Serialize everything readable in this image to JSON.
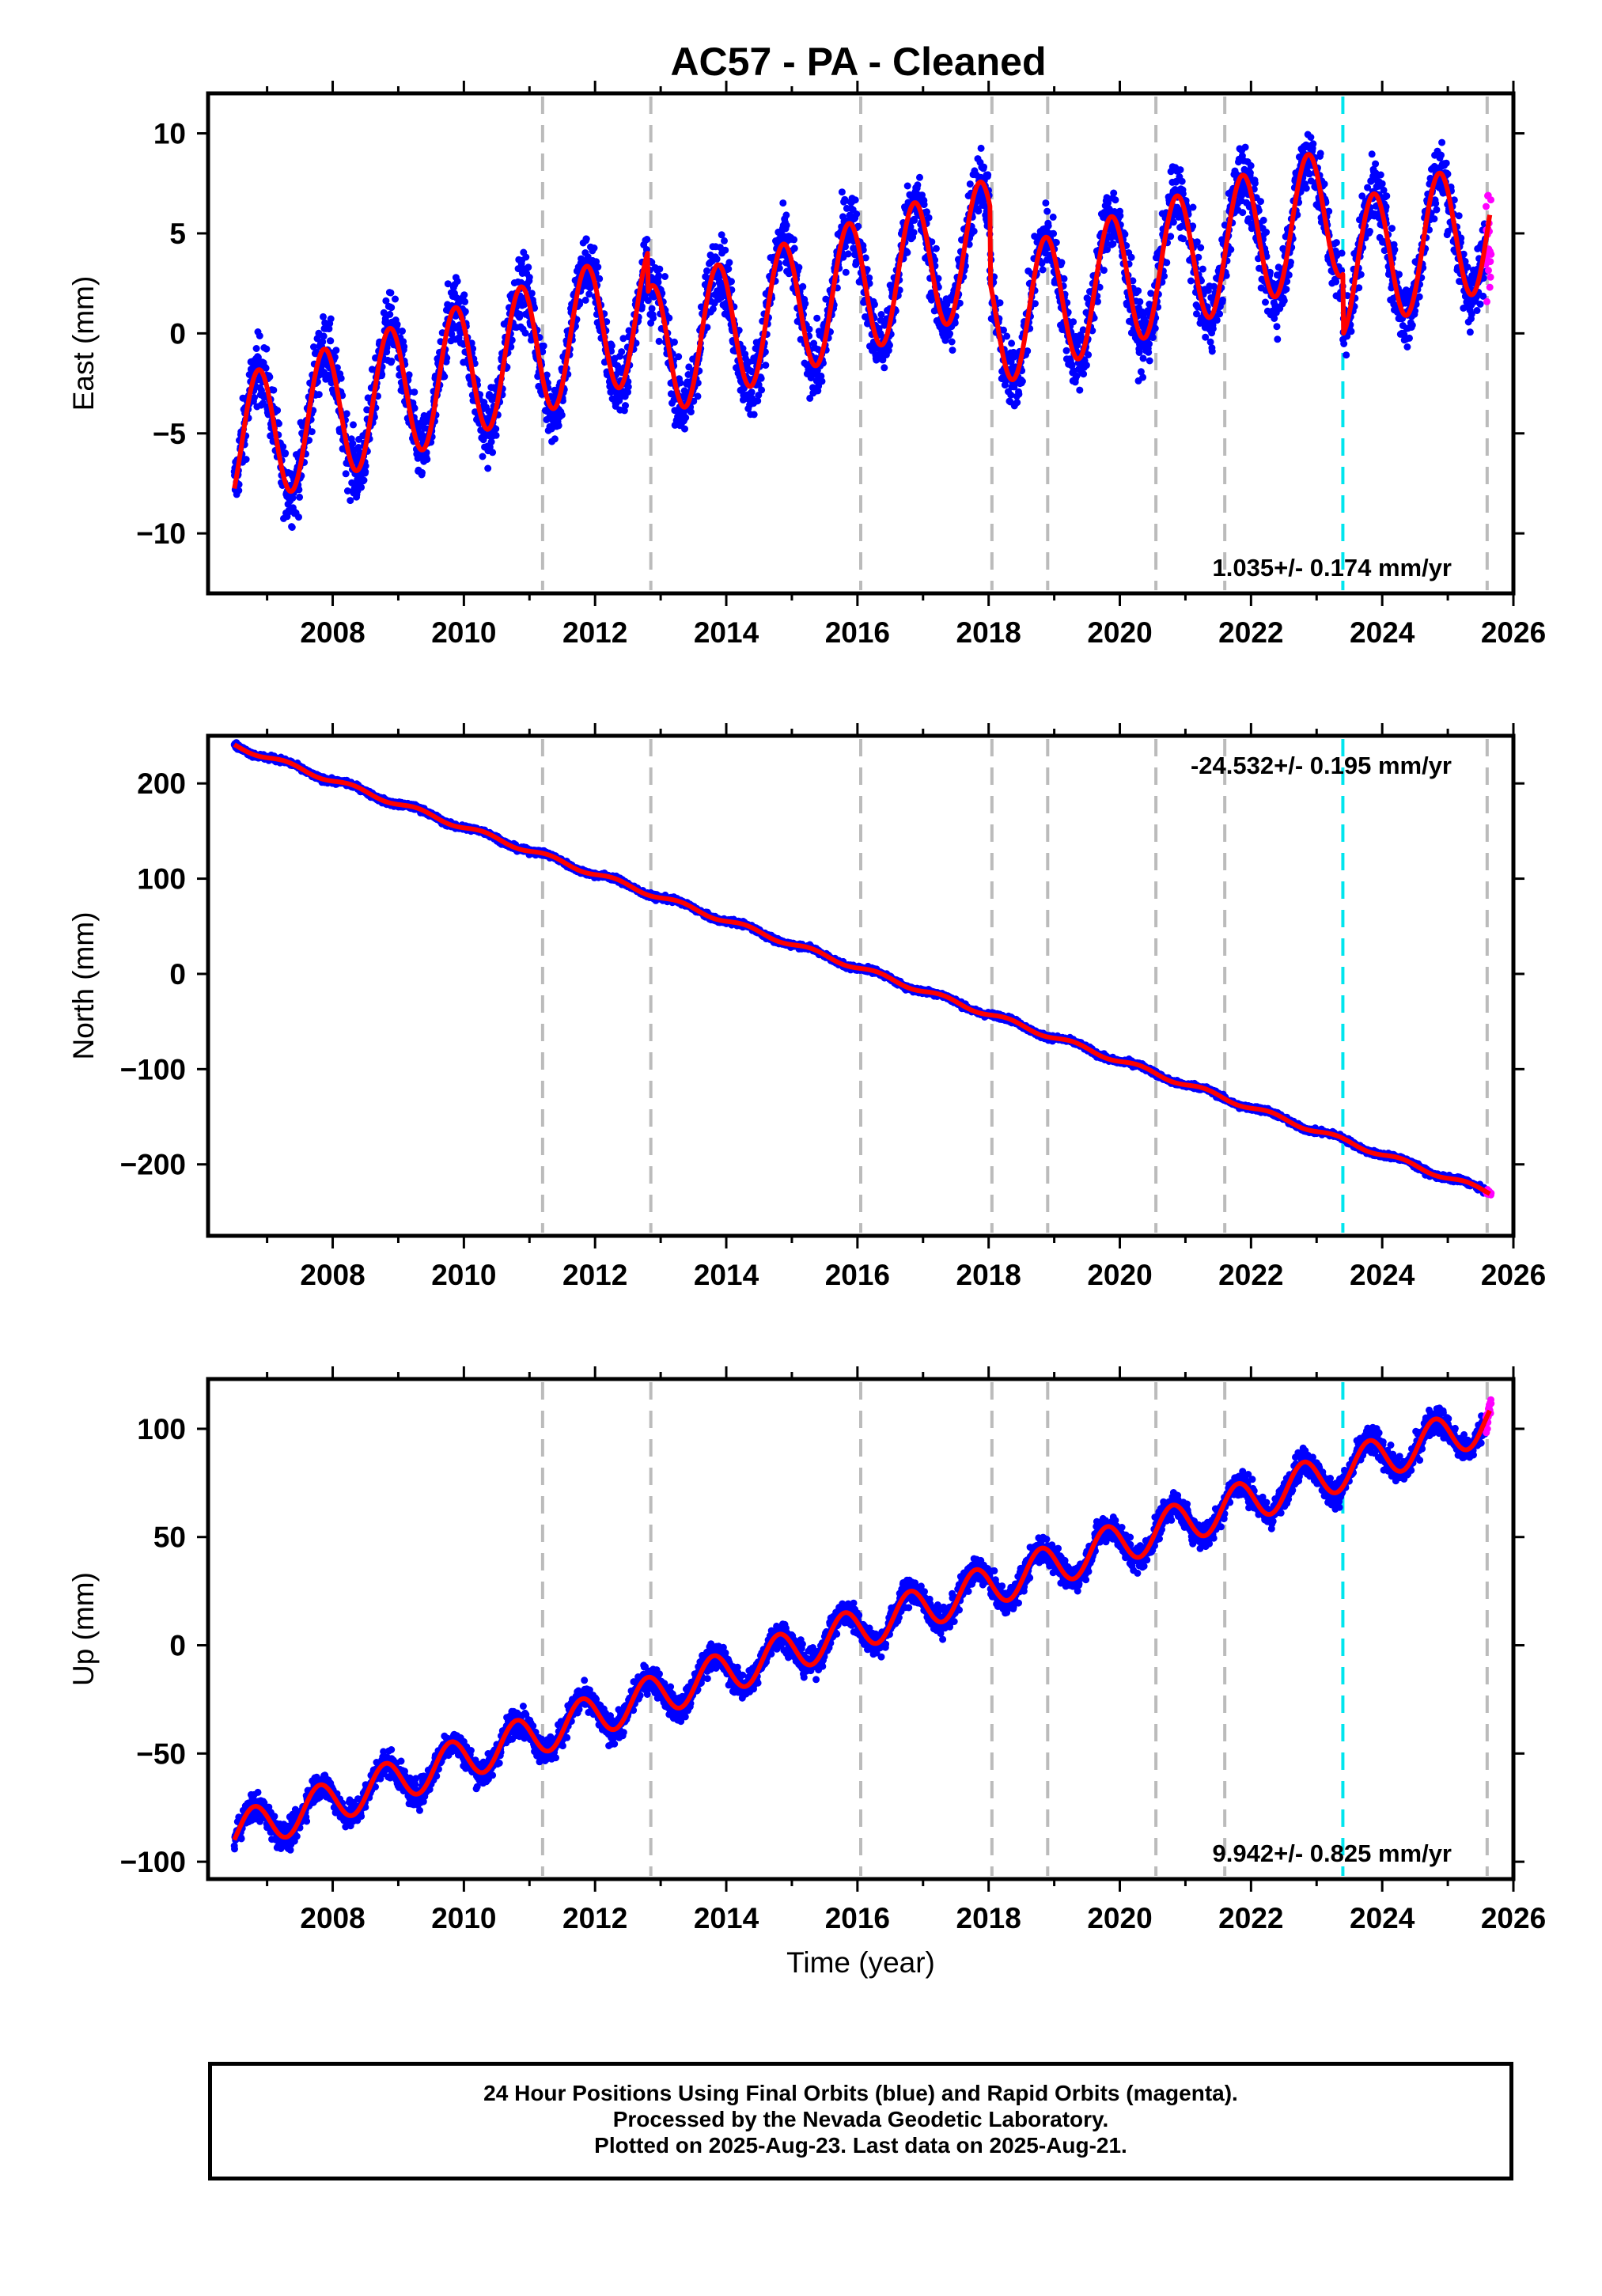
{
  "title": "AC57  - PA - Cleaned",
  "xlabel": "Time (year)",
  "caption": {
    "line1": "24 Hour Positions Using Final Orbits (blue) and Rapid Orbits (magenta).",
    "line2": "Processed by the Nevada Geodetic Laboratory.",
    "line3": "Plotted on 2025-Aug-23. Last data on 2025-Aug-21."
  },
  "colors": {
    "final_orbits": "#0000ff",
    "rapid_orbits": "#ff00ff",
    "model_fit": "#ff0000",
    "equipment_change": "#bbbbbb",
    "earthquake": "#00e5ee"
  },
  "chart_data": [
    {
      "type": "scatter",
      "ylabel": "East (mm)",
      "rate_label": "1.035+/- 0.174 mm/yr",
      "rate_position": "bottom-right",
      "xlim": [
        2006.1,
        2026.0
      ],
      "ylim": [
        -13,
        12
      ],
      "xticks": [
        "2008",
        "2010",
        "2012",
        "2014",
        "2016",
        "2018",
        "2020",
        "2022",
        "2024",
        "2026"
      ],
      "yticks": [
        "10",
        "5",
        "0",
        "−5",
        "−10"
      ],
      "vertical_lines_gray": [
        2011.2,
        2012.85,
        2016.05,
        2018.05,
        2018.9,
        2020.55,
        2021.6,
        2025.6
      ],
      "vertical_lines_cyan": [
        2023.4
      ],
      "model": {
        "start": 2006.5,
        "end": 2025.64,
        "trend": -5.5,
        "rate": 1.035,
        "amplitude": 3.3,
        "peak_phase": 0.87,
        "offsets": [
          {
            "time": 2012.8,
            "delta": -2.0
          },
          {
            "time": 2018.02,
            "delta": -3.8
          },
          {
            "time": 2023.4,
            "delta": -3.0
          }
        ]
      },
      "series": [
        {
          "name": "Final Orbits",
          "kind": "points",
          "color": "#0000ff",
          "noise": 1.2
        },
        {
          "name": "Rapid Orbits",
          "kind": "points",
          "color": "#ff00ff",
          "x": [
            2025.58,
            2025.66
          ],
          "noise": 2.2
        },
        {
          "name": "Model",
          "kind": "line",
          "color": "#ff0000"
        }
      ]
    },
    {
      "type": "scatter",
      "ylabel": "North (mm)",
      "rate_label": "-24.532+/- 0.195 mm/yr",
      "rate_position": "top-right",
      "xlim": [
        2006.1,
        2026.0
      ],
      "ylim": [
        -275,
        250
      ],
      "xticks": [
        "2008",
        "2010",
        "2012",
        "2014",
        "2016",
        "2018",
        "2020",
        "2022",
        "2024",
        "2026"
      ],
      "yticks": [
        "200",
        "100",
        "0",
        "−100",
        "−200"
      ],
      "vertical_lines_gray": [
        2011.2,
        2012.85,
        2016.05,
        2018.05,
        2018.9,
        2020.55,
        2021.6,
        2025.6
      ],
      "vertical_lines_cyan": [
        2023.4
      ],
      "model": {
        "start": 2006.5,
        "end": 2025.64,
        "trend": 240,
        "rate": -24.532,
        "amplitude": 2.5,
        "peak_phase": 0.3,
        "offsets": []
      },
      "series": [
        {
          "name": "Final Orbits",
          "kind": "points",
          "color": "#0000ff",
          "noise": 2.0
        },
        {
          "name": "Rapid Orbits",
          "kind": "points",
          "color": "#ff00ff",
          "x": [
            2025.58,
            2025.66
          ],
          "noise": 1.5
        },
        {
          "name": "Model",
          "kind": "line",
          "color": "#ff0000"
        }
      ]
    },
    {
      "type": "scatter",
      "ylabel": "Up (mm)",
      "rate_label": "9.942+/- 0.825 mm/yr",
      "rate_position": "bottom-right",
      "xlim": [
        2006.1,
        2026.0
      ],
      "ylim": [
        -108,
        123
      ],
      "xticks": [
        "2008",
        "2010",
        "2012",
        "2014",
        "2016",
        "2018",
        "2020",
        "2022",
        "2024",
        "2026"
      ],
      "yticks": [
        "100",
        "50",
        "0",
        "−50",
        "−100"
      ],
      "vertical_lines_gray": [
        2011.2,
        2012.85,
        2016.05,
        2018.05,
        2018.9,
        2020.55,
        2021.6,
        2025.6
      ],
      "vertical_lines_cyan": [
        2023.4
      ],
      "model": {
        "start": 2006.5,
        "end": 2025.64,
        "trend": -87,
        "rate": 9.942,
        "amplitude": 9.5,
        "peak_phase": 0.8,
        "offsets": []
      },
      "series": [
        {
          "name": "Final Orbits",
          "kind": "points",
          "color": "#0000ff",
          "noise": 4.5
        },
        {
          "name": "Rapid Orbits",
          "kind": "points",
          "color": "#ff00ff",
          "x": [
            2025.58,
            2025.66
          ],
          "noise": 5
        },
        {
          "name": "Model",
          "kind": "line",
          "color": "#ff0000"
        }
      ]
    }
  ]
}
